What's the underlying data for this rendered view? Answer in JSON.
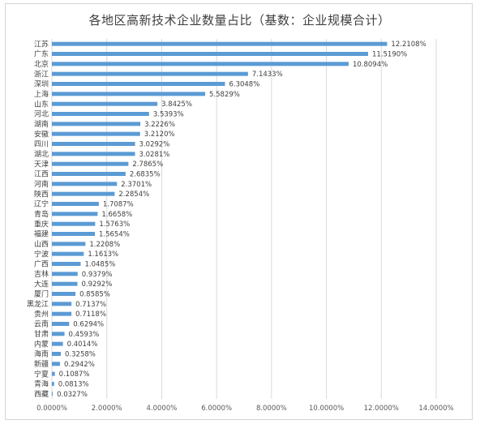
{
  "chart_data": {
    "type": "bar",
    "orientation": "horizontal",
    "title": "各地区高新技术企业数量占比（基数：企业规模合计）",
    "xlabel": "",
    "ylabel": "",
    "xlim": [
      0,
      14
    ],
    "grid": true,
    "color": "#5b9bd5",
    "categories": [
      "江苏",
      "广东",
      "北京",
      "浙江",
      "深圳",
      "上海",
      "山东",
      "河北",
      "湖南",
      "安徽",
      "四川",
      "湖北",
      "天津",
      "江西",
      "河南",
      "陕西",
      "辽宁",
      "青岛",
      "重庆",
      "福建",
      "山西",
      "宁波",
      "广西",
      "吉林",
      "大连",
      "厦门",
      "黑龙江",
      "贵州",
      "云南",
      "甘肃",
      "内蒙",
      "海南",
      "新疆",
      "宁夏",
      "青海",
      "西藏"
    ],
    "values": [
      12.2108,
      11.519,
      10.8094,
      7.1433,
      6.3048,
      5.5829,
      3.8425,
      3.5393,
      3.2226,
      3.212,
      3.0292,
      3.0281,
      2.7865,
      2.6835,
      2.3701,
      2.2854,
      1.7087,
      1.6658,
      1.5763,
      1.5654,
      1.2208,
      1.1613,
      1.0485,
      0.9379,
      0.9292,
      0.8585,
      0.7137,
      0.7118,
      0.6294,
      0.4593,
      0.4014,
      0.3258,
      0.2942,
      0.1087,
      0.0813,
      0.0327
    ],
    "value_labels": [
      "12.2108%",
      "11.5190%",
      "10.8094%",
      "7.1433%",
      "6.3048%",
      "5.5829%",
      "3.8425%",
      "3.5393%",
      "3.2226%",
      "3.2120%",
      "3.0292%",
      "3.0281%",
      "2.7865%",
      "2.6835%",
      "2.3701%",
      "2.2854%",
      "1.7087%",
      "1.6658%",
      "1.5763%",
      "1.5654%",
      "1.2208%",
      "1.1613%",
      "1.0485%",
      "0.9379%",
      "0.9292%",
      "0.8585%",
      "0.7137%",
      "0.7118%",
      "0.6294%",
      "0.4593%",
      "0.4014%",
      "0.3258%",
      "0.2942%",
      "0.1087%",
      "0.0813%",
      "0.0327%"
    ],
    "x_ticks": [
      0,
      2,
      4,
      6,
      8,
      10,
      12,
      14
    ],
    "x_tick_labels": [
      "0.0000%",
      "2.0000%",
      "4.0000%",
      "6.0000%",
      "8.0000%",
      "10.0000%",
      "12.0000%",
      "14.0000%"
    ]
  }
}
